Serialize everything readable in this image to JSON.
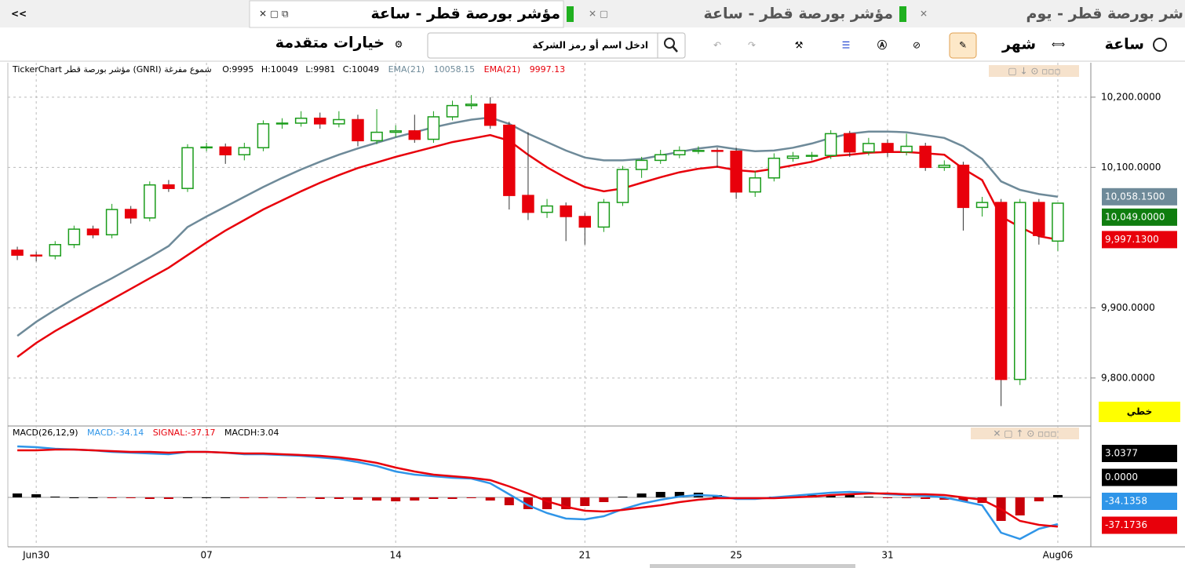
{
  "collapse": "<<",
  "tabs": [
    "مؤشر بورصة قطر - ساعة",
    "مؤشر بورصة قطر - ساعة",
    "شر بورصة قطر - يوم"
  ],
  "toolbar": {
    "interval": "ساعة",
    "period": "شهر",
    "advanced": "خيارات متقدمة",
    "search_placeholder": "ادخل اسم أو رمز الشركة"
  },
  "scale_button": "خطي",
  "chart_data": [
    {
      "type": "candlestick",
      "title": "TickerChart مؤشر بورصة قطر (GNRI)  شموع مفرغة",
      "ohlc_names": [
        "O:",
        "H:",
        "L:",
        "C:"
      ],
      "categories": [
        null,
        "Jun30",
        null,
        null,
        null,
        null,
        null,
        null,
        null,
        null,
        "07",
        null,
        null,
        null,
        null,
        null,
        null,
        null,
        null,
        null,
        "14",
        null,
        null,
        null,
        null,
        null,
        null,
        null,
        null,
        null,
        "21",
        null,
        null,
        null,
        null,
        null,
        null,
        null,
        "25",
        null,
        null,
        null,
        null,
        null,
        null,
        null,
        "31",
        null,
        null,
        null,
        null,
        null,
        null,
        null,
        null,
        "Aug06"
      ],
      "open": [
        9982,
        9975,
        9974,
        9990,
        10012,
        10004,
        10040,
        10028,
        10075,
        10070,
        10128,
        10129,
        10118,
        10128,
        10162,
        10163,
        10170,
        10162,
        10168,
        10138,
        10150,
        10152,
        10140,
        10172,
        10188,
        10190,
        10160,
        10060,
        10036,
        10045,
        10030,
        10015,
        10050,
        10097,
        10110,
        10118,
        10124,
        10124,
        10123,
        10065,
        10085,
        10113,
        10116,
        10117,
        10148,
        10122,
        10134,
        10122,
        10130,
        10100,
        10103,
        10043,
        10050,
        9798,
        10050,
        9995
      ],
      "high": [
        9987,
        9980,
        9995,
        10017,
        10017,
        10048,
        10045,
        10080,
        10082,
        10133,
        10135,
        10134,
        10135,
        10167,
        10170,
        10180,
        10178,
        10180,
        10175,
        10183,
        10160,
        10175,
        10180,
        10195,
        10203,
        10200,
        10165,
        10150,
        10055,
        10050,
        10035,
        10055,
        10102,
        10115,
        10125,
        10130,
        10130,
        10128,
        10128,
        10095,
        10120,
        10122,
        10122,
        10153,
        10152,
        10142,
        10140,
        10148,
        10135,
        10110,
        10108,
        10058,
        10055,
        10055,
        10055,
        10049
      ],
      "low": [
        9968,
        9966,
        9969,
        9985,
        9999,
        9999,
        10020,
        10023,
        10065,
        10065,
        10123,
        10105,
        10110,
        10123,
        10155,
        10158,
        10155,
        10157,
        10130,
        10133,
        10143,
        10135,
        10135,
        10167,
        10183,
        10155,
        10040,
        10025,
        10028,
        9995,
        9990,
        10008,
        10045,
        10085,
        10105,
        10113,
        10119,
        10100,
        10055,
        10058,
        10080,
        10108,
        10110,
        10112,
        10115,
        10117,
        10115,
        10117,
        10095,
        10095,
        10010,
        10030,
        9760,
        9790,
        9990,
        9981
      ],
      "close": [
        9975,
        9974,
        9990,
        10012,
        10004,
        10040,
        10028,
        10075,
        10070,
        10128,
        10129,
        10118,
        10128,
        10162,
        10163,
        10170,
        10162,
        10168,
        10138,
        10150,
        10152,
        10140,
        10172,
        10188,
        10190,
        10160,
        10060,
        10036,
        10045,
        10030,
        10015,
        10050,
        10097,
        10110,
        10118,
        10124,
        10124,
        10123,
        10065,
        10085,
        10113,
        10116,
        10117,
        10148,
        10122,
        10134,
        10122,
        10130,
        10100,
        10103,
        10043,
        10050,
        9798,
        10050,
        10003,
        10049
      ],
      "up_color": "#1a9c1a",
      "down_color": "#e8000b",
      "series": [
        {
          "name": "EMA(21)",
          "color": "#6e8a99",
          "values": [
            9860,
            9880,
            9897,
            9913,
            9928,
            9942,
            9957,
            9972,
            9988,
            10015,
            10030,
            10044,
            10058,
            10072,
            10085,
            10097,
            10108,
            10118,
            10127,
            10135,
            10143,
            10150,
            10157,
            10163,
            10168,
            10171,
            10162,
            10148,
            10136,
            10124,
            10114,
            10110,
            10110,
            10112,
            10117,
            10122,
            10127,
            10130,
            10126,
            10123,
            10124,
            10128,
            10134,
            10142,
            10148,
            10151,
            10151,
            10150,
            10146,
            10142,
            10130,
            10112,
            10080,
            10068,
            10062,
            10058.15
          ]
        },
        {
          "name": "EMA(21)",
          "color": "#e8000b",
          "values": [
            9830,
            9850,
            9867,
            9882,
            9897,
            9912,
            9927,
            9942,
            9957,
            9975,
            9993,
            10010,
            10025,
            10040,
            10053,
            10066,
            10078,
            10089,
            10099,
            10107,
            10115,
            10122,
            10129,
            10136,
            10141,
            10146,
            10138,
            10118,
            10100,
            10085,
            10072,
            10066,
            10070,
            10078,
            10086,
            10093,
            10098,
            10101,
            10096,
            10094,
            10098,
            10103,
            10108,
            10116,
            10118,
            10121,
            10122,
            10122,
            10120,
            10118,
            10098,
            10082,
            10030,
            10015,
            10002,
            9997.13
          ]
        }
      ],
      "ylim": [
        9735,
        10249
      ],
      "yticks": [
        {
          "value": 10200,
          "label": "10,200.0000"
        },
        {
          "value": 10100,
          "label": "10,100.0000"
        },
        {
          "value": 9900,
          "label": "9,900.0000"
        },
        {
          "value": 9800,
          "label": "9,800.0000"
        }
      ],
      "grid": true,
      "tags": [
        {
          "value": 10058.15,
          "label": "10,058.1500",
          "color": "#6e8a99"
        },
        {
          "value": 10049,
          "label": "10,049.0000",
          "color": "#0f7d0f"
        },
        {
          "value": 9997.13,
          "label": "9,997.1300",
          "color": "#e8000b"
        }
      ]
    },
    {
      "type": "macd",
      "title": "MACD(26,12,9)",
      "ylim": [
        -63,
        89
      ],
      "pos_color": "#000000",
      "neg_color": "#c8000a",
      "series": [
        {
          "name": "MACD:",
          "color": "#2f95e8",
          "values": [
            65,
            64,
            62,
            61,
            60,
            58,
            57,
            56,
            55,
            58,
            58,
            57,
            55,
            55,
            54,
            53,
            51,
            49,
            45,
            40,
            33,
            29,
            27,
            25,
            24,
            18,
            4,
            -10,
            -20,
            -27,
            -28,
            -24,
            -15,
            -8,
            -3,
            1,
            3,
            2,
            -2,
            -2,
            0,
            2,
            4,
            6,
            7,
            6,
            4,
            3,
            2,
            0,
            -5,
            -10,
            -45,
            -53,
            -40,
            -34.14
          ]
        },
        {
          "name": "SIGNAL:",
          "color": "#e8000b",
          "values": [
            60,
            60,
            61,
            61,
            60,
            59,
            58,
            58,
            57,
            58,
            58,
            57,
            56,
            56,
            55,
            54,
            53,
            51,
            48,
            44,
            38,
            33,
            29,
            27,
            25,
            22,
            14,
            5,
            -5,
            -12,
            -17,
            -18,
            -16,
            -13,
            -10,
            -6,
            -3,
            -1,
            -1,
            -1,
            -1,
            0,
            1,
            3,
            4,
            5,
            5,
            4,
            4,
            3,
            0,
            -3,
            -15,
            -30,
            -35,
            -37.17
          ]
        },
        {
          "name": "MACDH:",
          "color": "#000000",
          "values": [
            5,
            4,
            1,
            0,
            0,
            -1,
            -1,
            -2,
            -2,
            0,
            0,
            0,
            -1,
            -1,
            -1,
            -1,
            -2,
            -2,
            -3,
            -4,
            -5,
            -4,
            -2,
            -2,
            -1,
            -4,
            -10,
            -15,
            -15,
            -15,
            -11,
            -6,
            1,
            5,
            7,
            7,
            6,
            3,
            -1,
            -1,
            1,
            2,
            3,
            3,
            3,
            1,
            -1,
            -1,
            -2,
            -3,
            -5,
            -7,
            -30,
            -23,
            -5,
            3.04
          ]
        }
      ],
      "tags": [
        {
          "value": 3.0377,
          "label": "3.0377",
          "color": "#000000"
        },
        {
          "value": 0,
          "label": "0.0000",
          "color": "#000000"
        },
        {
          "value": -34.1358,
          "label": "-34.1358",
          "color": "#2f95e8"
        },
        {
          "value": -37.1736,
          "label": "-37.1736",
          "color": "#e8000b"
        }
      ]
    }
  ]
}
